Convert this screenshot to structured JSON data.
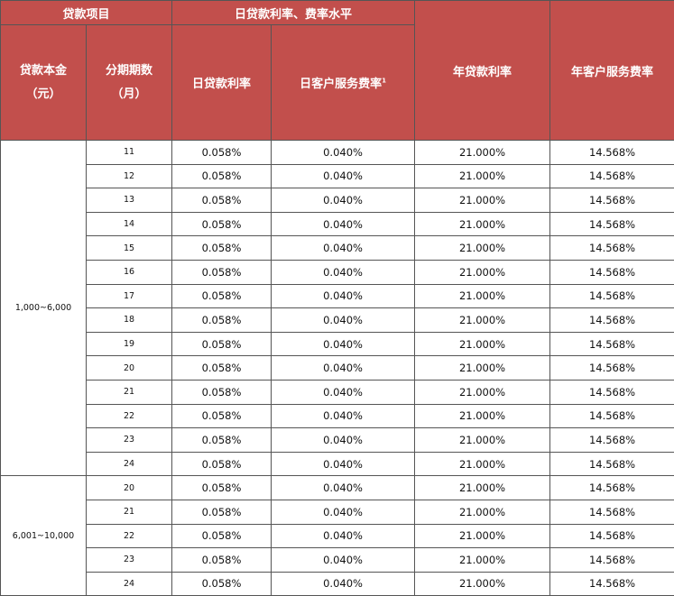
{
  "header": {
    "group_loan": "贷款项目",
    "group_daily": "日贷款利率、费率水平",
    "annual_rate": "年贷款利率",
    "annual_fee": "年客户服务费率",
    "principal": "贷款本金",
    "principal_unit": "（元）",
    "term": "分期期数",
    "term_unit": "（月）",
    "daily_rate": "日贷款利率",
    "daily_fee": "日客户服务费率",
    "daily_fee_note": "1"
  },
  "groups": [
    {
      "principal": "1,000~6,000",
      "rows": [
        [
          "11",
          "0.058%",
          "0.040%",
          "21.000%",
          "14.568%"
        ],
        [
          "12",
          "0.058%",
          "0.040%",
          "21.000%",
          "14.568%"
        ],
        [
          "13",
          "0.058%",
          "0.040%",
          "21.000%",
          "14.568%"
        ],
        [
          "14",
          "0.058%",
          "0.040%",
          "21.000%",
          "14.568%"
        ],
        [
          "15",
          "0.058%",
          "0.040%",
          "21.000%",
          "14.568%"
        ],
        [
          "16",
          "0.058%",
          "0.040%",
          "21.000%",
          "14.568%"
        ],
        [
          "17",
          "0.058%",
          "0.040%",
          "21.000%",
          "14.568%"
        ],
        [
          "18",
          "0.058%",
          "0.040%",
          "21.000%",
          "14.568%"
        ],
        [
          "19",
          "0.058%",
          "0.040%",
          "21.000%",
          "14.568%"
        ],
        [
          "20",
          "0.058%",
          "0.040%",
          "21.000%",
          "14.568%"
        ],
        [
          "21",
          "0.058%",
          "0.040%",
          "21.000%",
          "14.568%"
        ],
        [
          "22",
          "0.058%",
          "0.040%",
          "21.000%",
          "14.568%"
        ],
        [
          "23",
          "0.058%",
          "0.040%",
          "21.000%",
          "14.568%"
        ],
        [
          "24",
          "0.058%",
          "0.040%",
          "21.000%",
          "14.568%"
        ]
      ]
    },
    {
      "principal": "6,001~10,000",
      "rows": [
        [
          "20",
          "0.058%",
          "0.040%",
          "21.000%",
          "14.568%"
        ],
        [
          "21",
          "0.058%",
          "0.040%",
          "21.000%",
          "14.568%"
        ],
        [
          "22",
          "0.058%",
          "0.040%",
          "21.000%",
          "14.568%"
        ],
        [
          "23",
          "0.058%",
          "0.040%",
          "21.000%",
          "14.568%"
        ],
        [
          "24",
          "0.058%",
          "0.040%",
          "21.000%",
          "14.568%"
        ]
      ]
    }
  ]
}
